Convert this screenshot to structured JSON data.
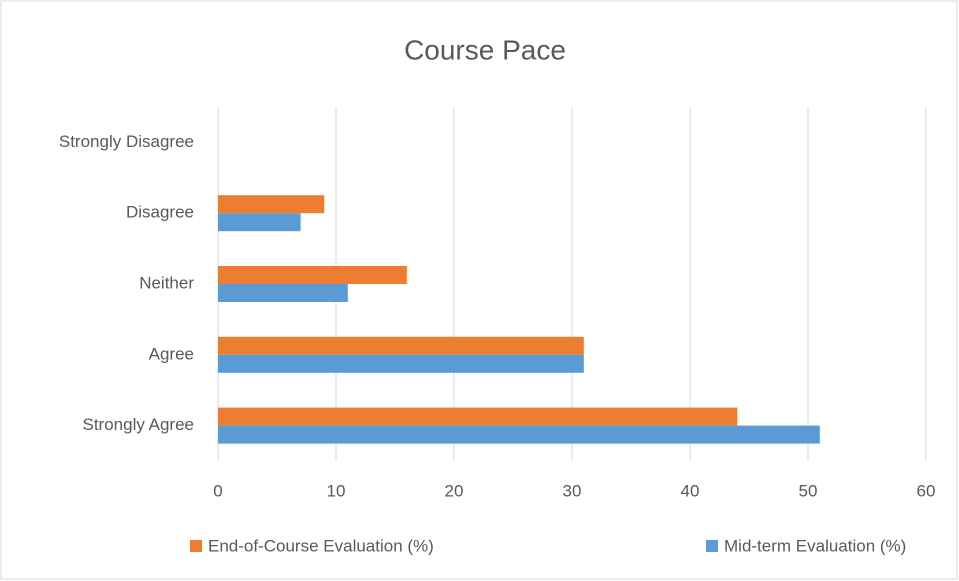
{
  "chart_data": {
    "type": "hbar",
    "title": "Course Pace",
    "categories": [
      "Strongly Disagree",
      "Disagree",
      "Neither",
      "Agree",
      "Strongly Agree"
    ],
    "series": [
      {
        "name": "End-of-Course Evaluation (%)",
        "color": "#ed7d31",
        "values": [
          0,
          9,
          16,
          31,
          44
        ]
      },
      {
        "name": "Mid-term Evaluation (%)",
        "color": "#5b9bd5",
        "values": [
          0,
          7,
          11,
          31,
          51
        ]
      }
    ],
    "xlim": [
      0,
      60
    ],
    "xticks": [
      0,
      10,
      20,
      30,
      40,
      50,
      60
    ],
    "grid": true,
    "legend": "bottom"
  }
}
